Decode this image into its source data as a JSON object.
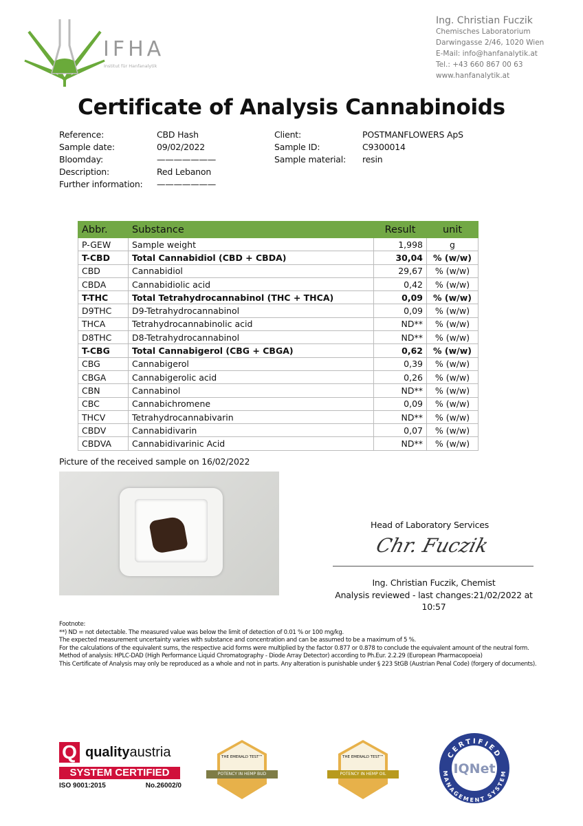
{
  "logo": {
    "name": "IFHA",
    "subtitle": "Institut für Hanfanalytik",
    "colors": {
      "green": "#6aaa3a",
      "gray": "#999999"
    }
  },
  "lab": {
    "name": "Ing. Christian Fuczik",
    "lines": [
      "Chemisches Laboratorium",
      "Darwingasse 2/46, 1020 Wien",
      "E-Mail: info@hanfanalytik.at",
      "Tel.: +43 660 867 00 63",
      "www.hanfanalytik.at"
    ]
  },
  "title": "Certificate of Analysis Cannabinoids",
  "info_left": [
    {
      "label": "Reference:",
      "value": "CBD Hash"
    },
    {
      "label": "Sample date:",
      "value": "09/02/2022"
    },
    {
      "label": "Bloomday:",
      "value": "———————"
    },
    {
      "label": "Description:",
      "value": "Red Lebanon"
    },
    {
      "label": "Further information:",
      "value": "———————"
    }
  ],
  "info_right": [
    {
      "label": "Client:",
      "value": "POSTMANFLOWERS ApS"
    },
    {
      "label": "Sample ID:",
      "value": "C9300014"
    },
    {
      "label": "Sample material:",
      "value": "resin"
    }
  ],
  "table": {
    "header_color": "#72a845",
    "headers": [
      "Abbr.",
      "Substance",
      "Result",
      "unit"
    ],
    "rows": [
      {
        "abbr": "P-GEW",
        "substance": "Sample weight",
        "result": "1,998",
        "unit": "g",
        "bold": false
      },
      {
        "abbr": "T-CBD",
        "substance": "Total Cannabidiol (CBD + CBDA)",
        "result": "30,04",
        "unit": "% (w/w)",
        "bold": true
      },
      {
        "abbr": "CBD",
        "substance": "Cannabidiol",
        "result": "29,67",
        "unit": "% (w/w)",
        "bold": false
      },
      {
        "abbr": "CBDA",
        "substance": "Cannabidiolic acid",
        "result": "0,42",
        "unit": "% (w/w)",
        "bold": false
      },
      {
        "abbr": "T-THC",
        "substance": "Total Tetrahydrocannabinol (THC + THCA)",
        "result": "0,09",
        "unit": "% (w/w)",
        "bold": true
      },
      {
        "abbr": "D9THC",
        "substance": "D9-Tetrahydrocannabinol",
        "result": "0,09",
        "unit": "% (w/w)",
        "bold": false
      },
      {
        "abbr": "THCA",
        "substance": "Tetrahydrocannabinolic acid",
        "result": "ND**",
        "unit": "% (w/w)",
        "bold": false
      },
      {
        "abbr": "D8THC",
        "substance": "D8-Tetrahydrocannabinol",
        "result": "ND**",
        "unit": "% (w/w)",
        "bold": false
      },
      {
        "abbr": "T-CBG",
        "substance": "Total Cannabigerol (CBG + CBGA)",
        "result": "0,62",
        "unit": "% (w/w)",
        "bold": true
      },
      {
        "abbr": "CBG",
        "substance": "Cannabigerol",
        "result": "0,39",
        "unit": "% (w/w)",
        "bold": false
      },
      {
        "abbr": "CBGA",
        "substance": "Cannabigerolic acid",
        "result": "0,26",
        "unit": "% (w/w)",
        "bold": false
      },
      {
        "abbr": "CBN",
        "substance": "Cannabinol",
        "result": "ND**",
        "unit": "% (w/w)",
        "bold": false
      },
      {
        "abbr": "CBC",
        "substance": "Cannabichromene",
        "result": "0,09",
        "unit": "% (w/w)",
        "bold": false
      },
      {
        "abbr": "THCV",
        "substance": "Tetrahydrocannabivarin",
        "result": "ND**",
        "unit": "% (w/w)",
        "bold": false
      },
      {
        "abbr": "CBDV",
        "substance": "Cannabidivarin",
        "result": "0,07",
        "unit": "% (w/w)",
        "bold": false
      },
      {
        "abbr": "CBDVA",
        "substance": "Cannabidivarinic Acid",
        "result": "ND**",
        "unit": "% (w/w)",
        "bold": false
      }
    ]
  },
  "picture_caption": "Picture of the received sample on 16/02/2022",
  "signature": {
    "heading": "Head of Laboratory Services",
    "signed": "Chr. Fuczik",
    "name": "Ing. Christian Fuczik, Chemist",
    "reviewed": "Analysis reviewed - last changes:21/02/2022 at",
    "time": "10:57"
  },
  "footnote": {
    "title": "Footnote:",
    "lines": [
      "**) ND = not detectable. The measured value was below the limit of detection of 0.01 % or 100 mg/kg.",
      "The expected measurement uncertainty varies with substance and concentration and can be assumed to be a maximum of 5 %.",
      "For the calculations of the equivalent sums, the respective acid forms were multiplied by the factor 0.877 or 0.878 to conclude the equivalent amount of the neutral form.",
      "Method of analysis: HPLC-DAD (High Performance Liquid Chromatography - Diode Array Detector) according to Ph.Eur. 2.2.29 (European Pharmacopoeia)",
      "This Certificate of Analysis may only be reproduced as a whole and not in parts. Any alteration is punishable under § 223 StGB (Austrian Penal Code) (forgery of documents)."
    ]
  },
  "certs": {
    "quality_austria": {
      "brand_bold": "quality",
      "brand": "austria",
      "banner": "SYSTEM CERTIFIED",
      "iso": "ISO 9001:2015",
      "number": "No.26002/0",
      "color": "#d0103a"
    },
    "emerald_bud": {
      "title": "THE EMERALD TEST™",
      "band": "POTENCY IN HEMP BUD"
    },
    "emerald_oil": {
      "title": "THE EMERALD TEST™",
      "band": "POTENCY IN HEMP OIL"
    },
    "iqnet": {
      "top": "CERTIFIED",
      "center": "IQNet",
      "bottom": "MANAGEMENT SYSTEM",
      "color": "#2a3f8f"
    }
  }
}
